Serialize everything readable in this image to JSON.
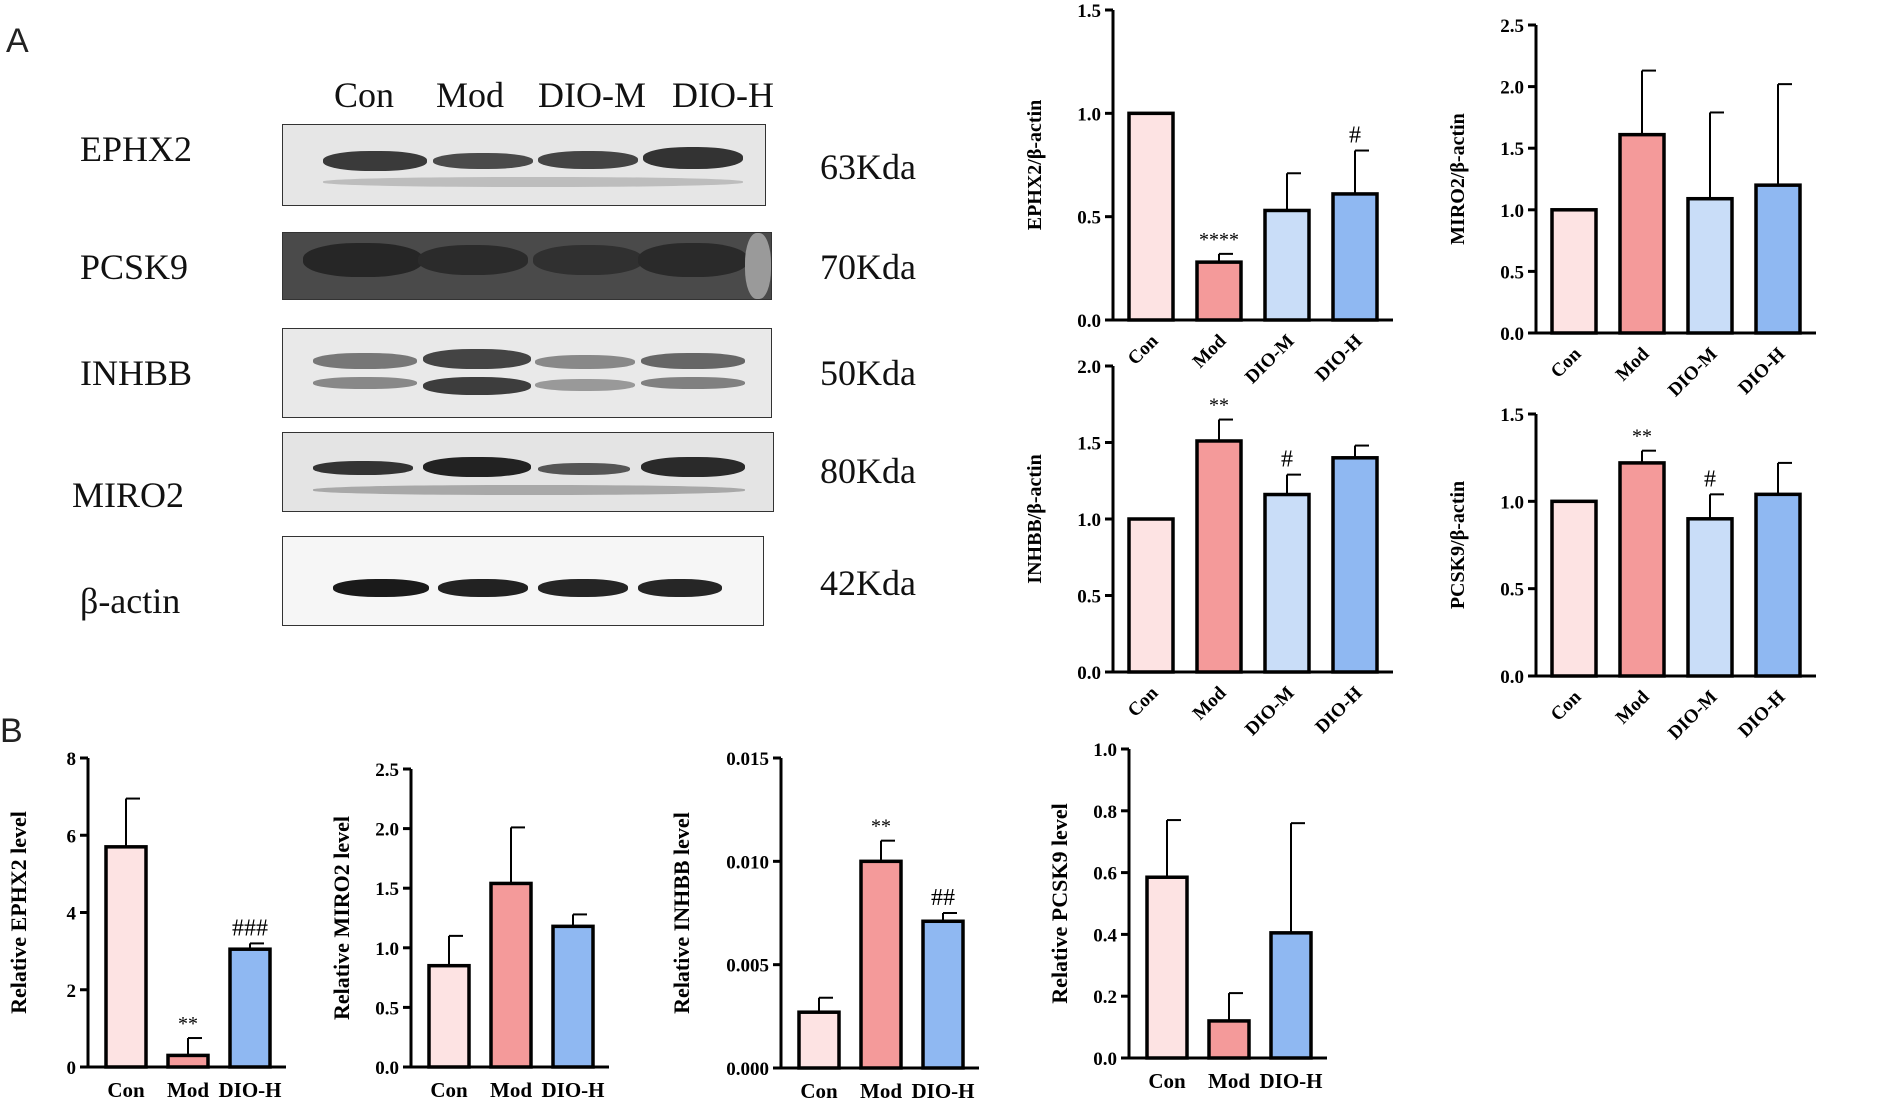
{
  "panels": {
    "a": "A",
    "b": "B"
  },
  "western_blot": {
    "lanes": [
      "Con",
      "Mod",
      "DIO-M",
      "DIO-H"
    ],
    "rows": [
      {
        "protein": "EPHX2",
        "kda": "63Kda"
      },
      {
        "protein": "PCSK9",
        "kda": "70Kda"
      },
      {
        "protein": "INHBB",
        "kda": "50Kda"
      },
      {
        "protein": "MIRO2",
        "kda": "80Kda"
      },
      {
        "protein": "β-actin",
        "kda": "42Kda"
      }
    ]
  },
  "colors": {
    "con": "#fde3e3",
    "mod": "#f49a9a",
    "dio_m": "#c9ddf8",
    "dio_h": "#8fb8f2"
  },
  "chart_data": [
    {
      "id": "ephx2_wb",
      "type": "bar",
      "categories": [
        "Con",
        "Mod",
        "DIO-M",
        "DIO-H"
      ],
      "values": [
        1.0,
        0.28,
        0.53,
        0.61
      ],
      "errors": [
        0,
        0.04,
        0.18,
        0.21
      ],
      "annotations": [
        "",
        "****",
        "",
        "#"
      ],
      "ylabel": "EPHX2/β-actin",
      "ylim": [
        0,
        1.5
      ],
      "yticks": [
        "0.0",
        "0.5",
        "1.0",
        "1.5"
      ]
    },
    {
      "id": "miro2_wb",
      "type": "bar",
      "categories": [
        "Con",
        "Mod",
        "DIO-M",
        "DIO-H"
      ],
      "values": [
        1.0,
        1.61,
        1.09,
        1.2
      ],
      "errors": [
        0,
        0.52,
        0.7,
        0.82
      ],
      "annotations": [
        "",
        "",
        "",
        ""
      ],
      "ylabel": "MIRO2/β-actin",
      "ylim": [
        0,
        2.5
      ],
      "yticks": [
        "0.0",
        "0.5",
        "1.0",
        "1.5",
        "2.0",
        "2.5"
      ]
    },
    {
      "id": "inhbb_wb",
      "type": "bar",
      "categories": [
        "Con",
        "Mod",
        "DIO-M",
        "DIO-H"
      ],
      "values": [
        1.0,
        1.51,
        1.16,
        1.4
      ],
      "errors": [
        0,
        0.14,
        0.13,
        0.08
      ],
      "annotations": [
        "",
        "**",
        "#",
        ""
      ],
      "ylabel": "INHBB/β-actin",
      "ylim": [
        0,
        2.0
      ],
      "yticks": [
        "0.0",
        "0.5",
        "1.0",
        "1.5",
        "2.0"
      ]
    },
    {
      "id": "pcsk9_wb",
      "type": "bar",
      "categories": [
        "Con",
        "Mod",
        "DIO-M",
        "DIO-H"
      ],
      "values": [
        1.0,
        1.22,
        0.9,
        1.04
      ],
      "errors": [
        0,
        0.07,
        0.14,
        0.18
      ],
      "annotations": [
        "",
        "**",
        "#",
        ""
      ],
      "ylabel": "PCSK9/β-actin",
      "ylim": [
        0,
        1.5
      ],
      "yticks": [
        "0.0",
        "0.5",
        "1.0",
        "1.5"
      ]
    },
    {
      "id": "ephx2_qpcr",
      "type": "bar",
      "categories": [
        "Con",
        "Mod",
        "DIO-H"
      ],
      "values": [
        5.7,
        0.3,
        3.05
      ],
      "errors": [
        1.25,
        0.45,
        0.15
      ],
      "annotations": [
        "",
        "**",
        "###"
      ],
      "ylabel": "Relative EPHX2 level",
      "ylim": [
        0,
        8
      ],
      "yticks": [
        "0",
        "2",
        "4",
        "6",
        "8"
      ]
    },
    {
      "id": "miro2_qpcr",
      "type": "bar",
      "categories": [
        "Con",
        "Mod",
        "DIO-H"
      ],
      "values": [
        0.85,
        1.54,
        1.18
      ],
      "errors": [
        0.25,
        0.47,
        0.1
      ],
      "annotations": [
        "",
        "",
        ""
      ],
      "ylabel": "Relative MIRO2 level",
      "ylim": [
        0,
        2.5
      ],
      "yticks": [
        "0.0",
        "0.5",
        "1.0",
        "1.5",
        "2.0",
        "2.5"
      ]
    },
    {
      "id": "inhbb_qpcr",
      "type": "bar",
      "categories": [
        "Con",
        "Mod",
        "DIO-H"
      ],
      "values": [
        0.0027,
        0.01,
        0.0071
      ],
      "errors": [
        0.0007,
        0.001,
        0.0004
      ],
      "annotations": [
        "",
        "**",
        "##"
      ],
      "ylabel": "Relative INHBB level",
      "ylim": [
        0,
        0.015
      ],
      "yticks": [
        "0.000",
        "0.005",
        "0.010",
        "0.015"
      ]
    },
    {
      "id": "pcsk9_qpcr",
      "type": "bar",
      "categories": [
        "Con",
        "Mod",
        "DIO-H"
      ],
      "values": [
        0.585,
        0.12,
        0.405
      ],
      "errors": [
        0.185,
        0.09,
        0.355
      ],
      "annotations": [
        "",
        "",
        ""
      ],
      "ylabel": "Relative PCSK9 level",
      "ylim": [
        0,
        1.0
      ],
      "yticks": [
        "0.0",
        "0.2",
        "0.4",
        "0.6",
        "0.8",
        "1.0"
      ]
    }
  ]
}
